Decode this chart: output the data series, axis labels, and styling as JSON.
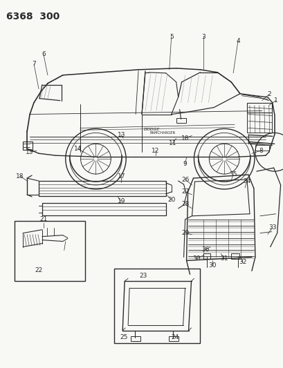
{
  "title": "6368 300",
  "bg": "#f5f5f0",
  "lc": "#2a2a2a",
  "figsize": [
    4.1,
    5.33
  ],
  "dpi": 100,
  "title_fontsize": 10,
  "callout_fontsize": 6.5
}
